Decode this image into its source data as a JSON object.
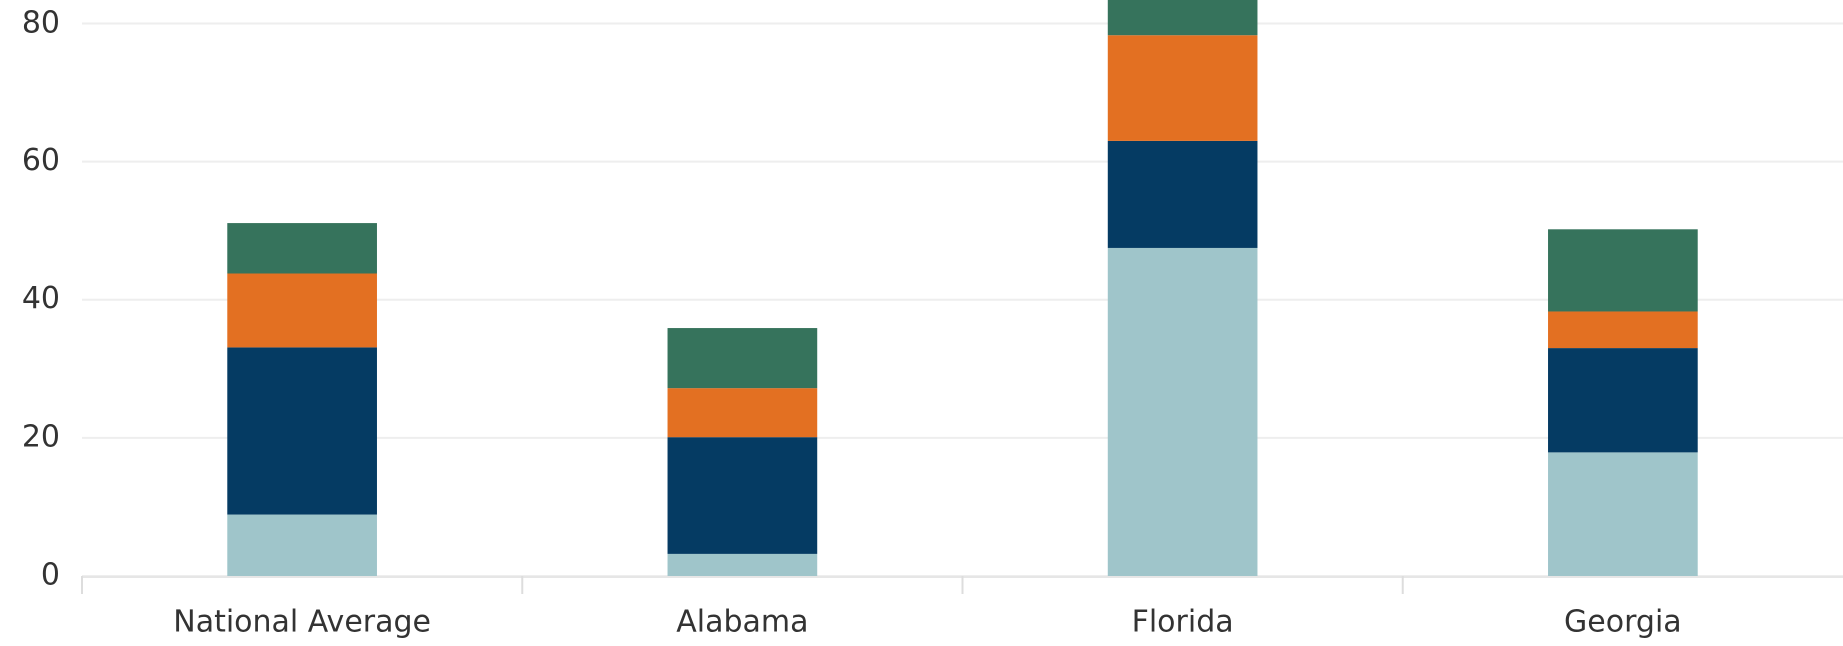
{
  "chart_data": {
    "type": "stacked_bar",
    "categories": [
      "National Average",
      "Alabama",
      "Florida",
      "Georgia"
    ],
    "series": [
      {
        "color": "#9fc5ca",
        "values": [
          8.9,
          3.2,
          47.5,
          17.9
        ]
      },
      {
        "color": "#053b63",
        "values": [
          24.2,
          16.9,
          15.5,
          15.1
        ]
      },
      {
        "color": "#e37022",
        "values": [
          10.7,
          7.1,
          15.3,
          5.3
        ]
      },
      {
        "color": "#36735c",
        "values": [
          7.3,
          8.7,
          5.1,
          11.9
        ]
      }
    ],
    "ylim": [
      0,
      83.4
    ],
    "yticks": [
      0,
      20,
      40,
      60,
      80
    ],
    "grid": true
  }
}
